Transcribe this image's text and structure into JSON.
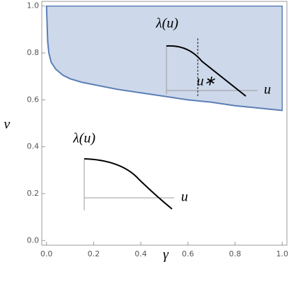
{
  "chart_data": {
    "type": "region",
    "x_label": "γ",
    "y_label": "v",
    "xlim": [
      -0.02,
      1.02
    ],
    "ylim": [
      -0.02,
      1.02
    ],
    "xticks": [
      {
        "value": 0,
        "label": "0.0"
      },
      0.2,
      0.4,
      0.6,
      0.8,
      {
        "value": 1,
        "label": "1.0"
      }
    ],
    "yticks": [
      {
        "value": 0,
        "label": "0.0"
      },
      0.2,
      0.4,
      0.6,
      0.8,
      {
        "value": 1,
        "label": "1.0"
      }
    ],
    "x": [
      0,
      0.005,
      0.01,
      0.02,
      0.04,
      0.07,
      0.1,
      0.15,
      0.2,
      0.3,
      0.4,
      0.5,
      0.6,
      0.7,
      0.8,
      0.9,
      1.0
    ],
    "values": [
      1.0,
      0.85,
      0.8,
      0.76,
      0.73,
      0.705,
      0.69,
      0.675,
      0.665,
      0.645,
      0.63,
      0.615,
      0.6,
      0.59,
      0.575,
      0.565,
      0.555
    ],
    "upper": 1.0,
    "color": "#5b7fb5",
    "fill": "#cdd8ea",
    "annotations": [
      "λ(u)",
      "u",
      "u∗",
      "λ(u)",
      "u"
    ]
  }
}
